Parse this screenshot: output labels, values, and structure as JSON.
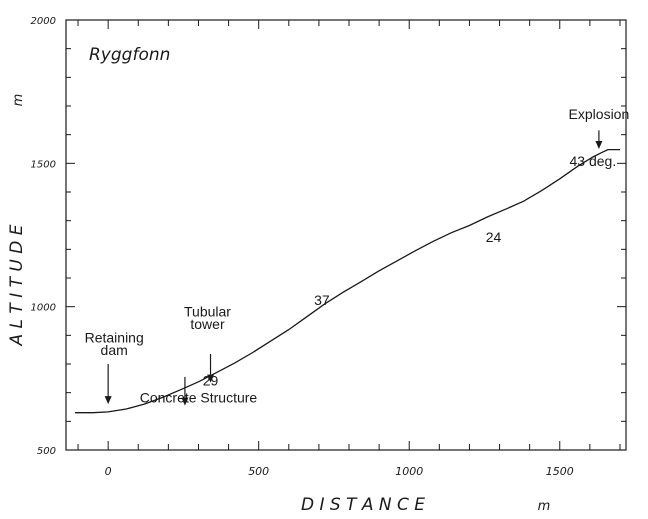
{
  "chart_data": {
    "type": "line",
    "title": "Ryggfonn",
    "xlabel": "D I S T A N C E",
    "xunit": "m",
    "ylabel": "A L T I T U D E",
    "yunit": "m",
    "xlim": [
      -140,
      1720
    ],
    "ylim": [
      500,
      2000
    ],
    "x_ticks": [
      0,
      500,
      1000,
      1500
    ],
    "x_tick_labels": [
      "0",
      "500",
      "1000",
      "1500"
    ],
    "y_ticks": [
      500,
      1000,
      1500,
      2000
    ],
    "y_tick_labels": [
      "500",
      "1000",
      "1500",
      "2000"
    ],
    "grid": false,
    "series": [
      {
        "x": [
          -110,
          -50,
          0,
          60,
          120,
          180,
          240,
          300,
          360,
          420,
          480,
          540,
          600,
          660,
          720,
          780,
          840,
          900,
          960,
          1020,
          1080,
          1140,
          1200,
          1260,
          1320,
          1380,
          1440,
          1500,
          1560,
          1610,
          1640,
          1660,
          1700
        ],
        "y": [
          630,
          630,
          633,
          643,
          660,
          683,
          710,
          738,
          770,
          803,
          840,
          880,
          920,
          965,
          1010,
          1050,
          1087,
          1125,
          1160,
          1195,
          1228,
          1258,
          1283,
          1313,
          1340,
          1368,
          1405,
          1446,
          1490,
          1522,
          1538,
          1548,
          1548
        ]
      }
    ],
    "annotations": [
      {
        "text": "Explosion",
        "x": 1630,
        "y": 1655
      },
      {
        "text": "43 deg.",
        "x": 1610,
        "y": 1490
      },
      {
        "text": "24",
        "x": 1280,
        "y": 1225
      },
      {
        "text": "37",
        "x": 710,
        "y": 1005
      },
      {
        "text": "Tubular",
        "x": 330,
        "y": 965
      },
      {
        "text": "tower",
        "x": 330,
        "y": 922
      },
      {
        "text": "Retaining",
        "x": 20,
        "y": 875
      },
      {
        "text": "dam",
        "x": 20,
        "y": 832
      },
      {
        "text": "29",
        "x": 340,
        "y": 725
      },
      {
        "text": "Concrete Structure",
        "x": 300,
        "y": 665
      }
    ],
    "arrows": [
      {
        "x": 0,
        "y_from": 800,
        "y_to": 660
      },
      {
        "x": 255,
        "y_from": 755,
        "y_to": 655
      },
      {
        "x": 340,
        "y_from": 835,
        "y_to": 735
      },
      {
        "x": 1630,
        "y_from": 1615,
        "y_to": 1550
      }
    ]
  }
}
